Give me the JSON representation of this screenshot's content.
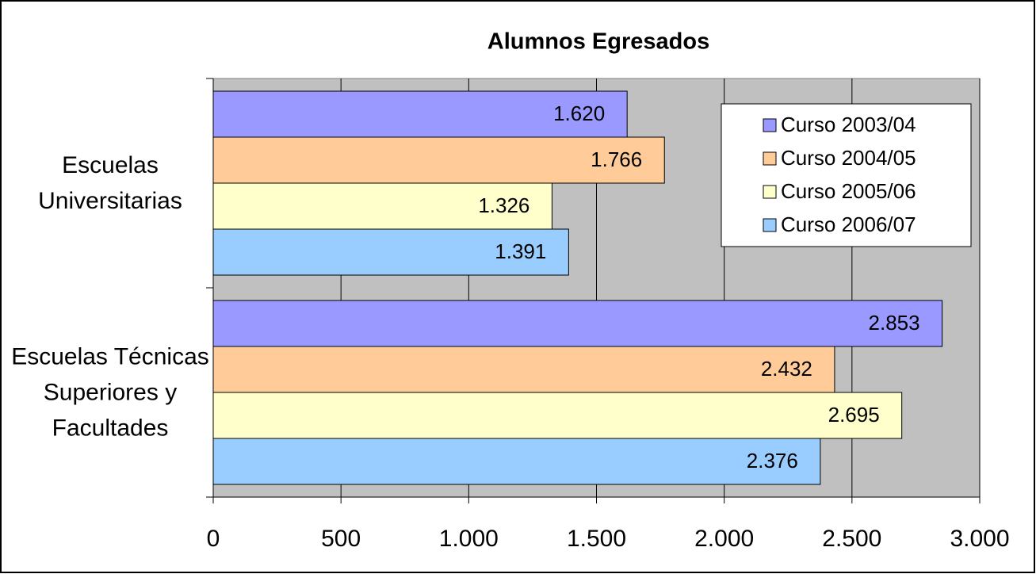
{
  "chart_data": {
    "type": "hbar",
    "title": "Alumnos Egresados",
    "categories": [
      "Escuelas Universitarias",
      "Escuelas Técnicas Superiores y Facultades"
    ],
    "series": [
      {
        "name": "Curso 2003/04",
        "color": "#9999ff",
        "values": [
          1620,
          2853
        ],
        "value_labels": [
          "1.620",
          "2.853"
        ]
      },
      {
        "name": "Curso 2004/05",
        "color": "#ffcc99",
        "values": [
          1766,
          2432
        ],
        "value_labels": [
          "1.766",
          "2.432"
        ]
      },
      {
        "name": "Curso 2005/06",
        "color": "#ffffcc",
        "values": [
          1326,
          2695
        ],
        "value_labels": [
          "1.326",
          "2.695"
        ]
      },
      {
        "name": "Curso 2006/07",
        "color": "#99ccff",
        "values": [
          1391,
          2376
        ],
        "value_labels": [
          "1.391",
          "2.376"
        ]
      }
    ],
    "xlim": [
      0,
      3000
    ],
    "xticks": [
      0,
      500,
      {
        "value": 1000,
        "label": "1.000"
      },
      {
        "value": 1500,
        "label": "1.500"
      },
      {
        "value": 2000,
        "label": "2.000"
      },
      {
        "value": 2500,
        "label": "2.500"
      },
      {
        "value": 3000,
        "label": "3.000"
      }
    ],
    "grid": true,
    "legend": "upper right"
  }
}
